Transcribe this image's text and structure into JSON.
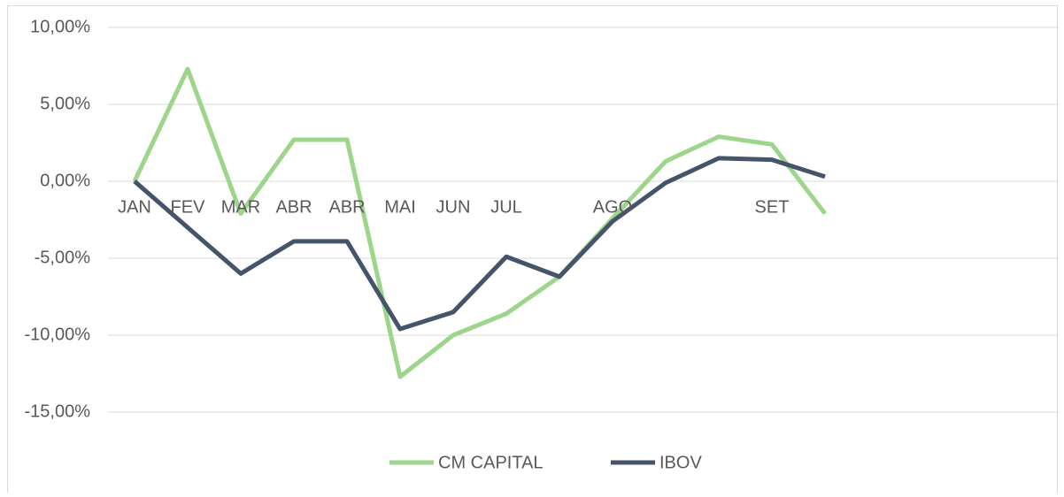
{
  "chart_data": {
    "type": "line",
    "categories": [
      "JAN",
      "FEV",
      "MAR",
      "ABR",
      "ABR",
      "MAI",
      "JUN",
      "JUL",
      null,
      "AGO",
      null,
      null,
      "SET",
      null
    ],
    "series": [
      {
        "name": "CM CAPITAL",
        "color": "#9dd58b",
        "values": [
          0,
          7.3,
          -2.1,
          2.7,
          2.7,
          -12.7,
          -10.0,
          -8.6,
          -6.2,
          -2.4,
          1.3,
          2.9,
          2.4,
          -2.1
        ]
      },
      {
        "name": "IBOV",
        "color": "#44546a",
        "values": [
          0,
          -3.0,
          -6.0,
          -3.9,
          -3.9,
          -9.6,
          -8.5,
          -4.9,
          -6.2,
          -2.6,
          -0.1,
          1.5,
          1.4,
          0.3
        ]
      }
    ],
    "ylim": [
      -15,
      10
    ],
    "yticks": [
      {
        "value": -15,
        "label": "-15,00%"
      },
      {
        "value": -10,
        "label": "-10,00%"
      },
      {
        "value": -5,
        "label": "-5,00%"
      },
      {
        "value": 0,
        "label": "0,00%"
      },
      {
        "value": 5,
        "label": "5,00%"
      },
      {
        "value": 10,
        "label": "10,00%"
      }
    ],
    "grid": true,
    "legend": "bottom"
  }
}
